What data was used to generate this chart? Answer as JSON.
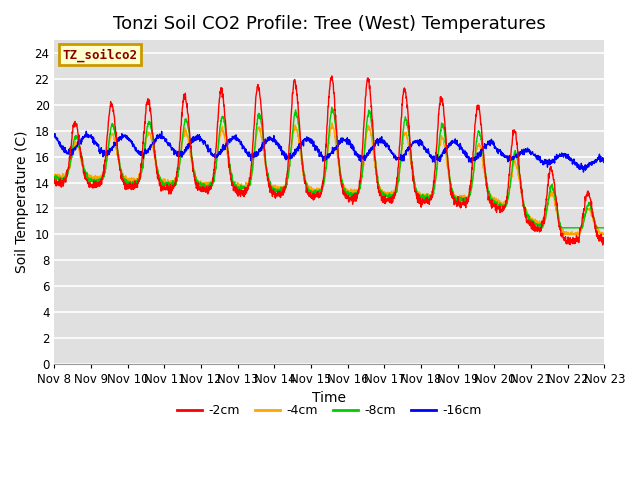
{
  "title": "Tonzi Soil CO2 Profile: Tree (West) Temperatures",
  "xlabel": "Time",
  "ylabel": "Soil Temperature (C)",
  "ylim": [
    0,
    25
  ],
  "yticks": [
    0,
    2,
    4,
    6,
    8,
    10,
    12,
    14,
    16,
    18,
    20,
    22,
    24
  ],
  "xtick_labels": [
    "Nov 8",
    "Nov 9",
    "Nov 10",
    "Nov 11",
    "Nov 12",
    "Nov 13",
    "Nov 14",
    "Nov 15",
    "Nov 16",
    "Nov 17",
    "Nov 18",
    "Nov 19",
    "Nov 20",
    "Nov 21",
    "Nov 22",
    "Nov 23"
  ],
  "legend_label": "TZ_soilco2",
  "legend_box_color": "#ffffcc",
  "legend_box_edge": "#cc9900",
  "line_colors": [
    "#ff0000",
    "#ffa500",
    "#00cc00",
    "#0000ff"
  ],
  "line_labels": [
    "-2cm",
    "-4cm",
    "-8cm",
    "-16cm"
  ],
  "bg_color": "#e0e0e0",
  "fig_color": "#ffffff",
  "title_fontsize": 13,
  "axis_label_fontsize": 10,
  "tick_fontsize": 8.5
}
